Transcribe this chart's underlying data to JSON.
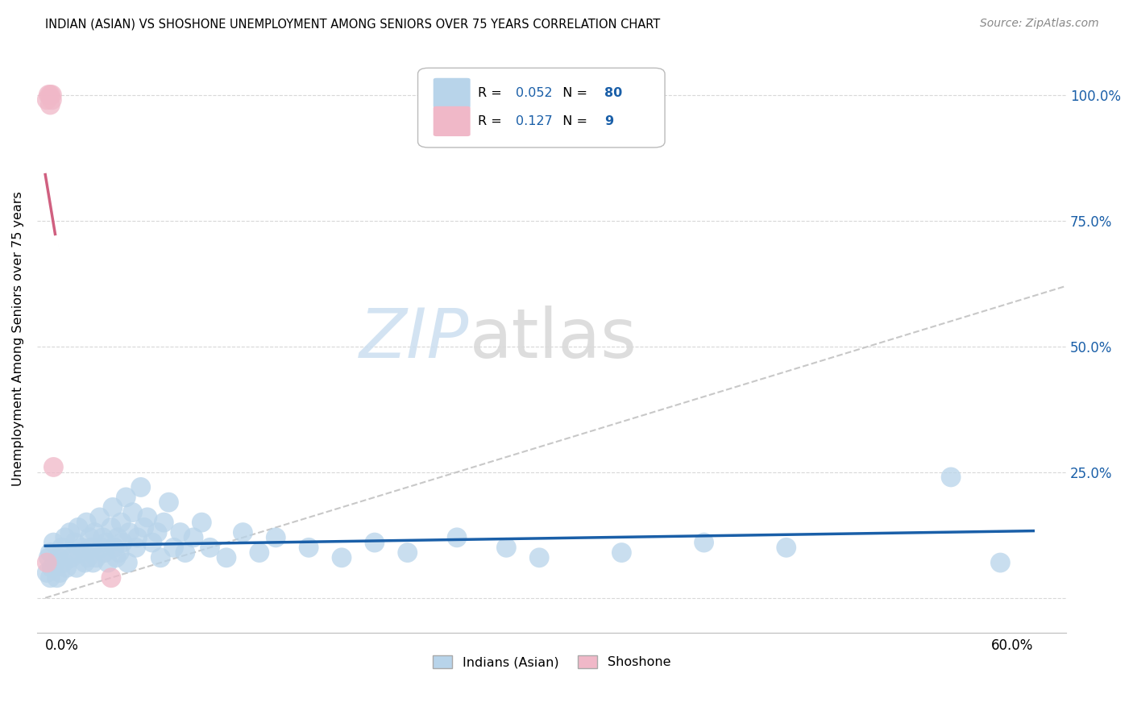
{
  "title": "INDIAN (ASIAN) VS SHOSHONE UNEMPLOYMENT AMONG SENIORS OVER 75 YEARS CORRELATION CHART",
  "source": "Source: ZipAtlas.com",
  "ylabel": "Unemployment Among Seniors over 75 years",
  "blue_color": "#b8d4ea",
  "blue_line_color": "#1a5fa8",
  "pink_color": "#f0b8c8",
  "pink_line_color": "#d06080",
  "ref_line_color": "#c8c8c8",
  "grid_color": "#d8d8d8",
  "background_color": "#ffffff",
  "legend_blue_r": "0.052",
  "legend_blue_n": "80",
  "legend_pink_r": "0.127",
  "legend_pink_n": "9",
  "blue_scatter_x": [
    0.001,
    0.002,
    0.003,
    0.003,
    0.004,
    0.005,
    0.006,
    0.007,
    0.008,
    0.009,
    0.01,
    0.011,
    0.012,
    0.013,
    0.015,
    0.015,
    0.016,
    0.018,
    0.019,
    0.02,
    0.021,
    0.022,
    0.024,
    0.025,
    0.026,
    0.027,
    0.028,
    0.029,
    0.03,
    0.031,
    0.033,
    0.034,
    0.035,
    0.036,
    0.037,
    0.038,
    0.04,
    0.041,
    0.042,
    0.043,
    0.044,
    0.045,
    0.046,
    0.047,
    0.049,
    0.05,
    0.051,
    0.053,
    0.055,
    0.056,
    0.058,
    0.06,
    0.062,
    0.065,
    0.068,
    0.07,
    0.072,
    0.075,
    0.078,
    0.082,
    0.085,
    0.09,
    0.095,
    0.1,
    0.11,
    0.12,
    0.13,
    0.14,
    0.16,
    0.18,
    0.2,
    0.22,
    0.25,
    0.28,
    0.3,
    0.35,
    0.4,
    0.45,
    0.55,
    0.58
  ],
  "blue_scatter_y": [
    0.05,
    0.08,
    0.04,
    0.09,
    0.06,
    0.11,
    0.07,
    0.04,
    0.08,
    0.05,
    0.1,
    0.07,
    0.12,
    0.06,
    0.13,
    0.09,
    0.08,
    0.11,
    0.06,
    0.14,
    0.09,
    0.1,
    0.07,
    0.15,
    0.08,
    0.12,
    0.1,
    0.07,
    0.13,
    0.08,
    0.16,
    0.1,
    0.12,
    0.09,
    0.11,
    0.07,
    0.14,
    0.18,
    0.1,
    0.08,
    0.12,
    0.09,
    0.15,
    0.11,
    0.2,
    0.07,
    0.13,
    0.17,
    0.1,
    0.12,
    0.22,
    0.14,
    0.16,
    0.11,
    0.13,
    0.08,
    0.15,
    0.19,
    0.1,
    0.13,
    0.09,
    0.12,
    0.15,
    0.1,
    0.08,
    0.13,
    0.09,
    0.12,
    0.1,
    0.08,
    0.11,
    0.09,
    0.12,
    0.1,
    0.08,
    0.09,
    0.11,
    0.1,
    0.24,
    0.07
  ],
  "pink_scatter_x": [
    0.001,
    0.002,
    0.003,
    0.003,
    0.004,
    0.004,
    0.005,
    0.04,
    0.001
  ],
  "pink_scatter_y": [
    0.99,
    1.0,
    0.98,
    1.0,
    1.0,
    0.99,
    0.26,
    0.04,
    0.07
  ],
  "xlim": [
    -0.005,
    0.62
  ],
  "ylim": [
    -0.07,
    1.1
  ],
  "yticks": [
    0.0,
    0.25,
    0.5,
    0.75,
    1.0
  ],
  "ytick_labels": [
    "",
    "25.0%",
    "50.0%",
    "75.0%",
    "100.0%"
  ]
}
